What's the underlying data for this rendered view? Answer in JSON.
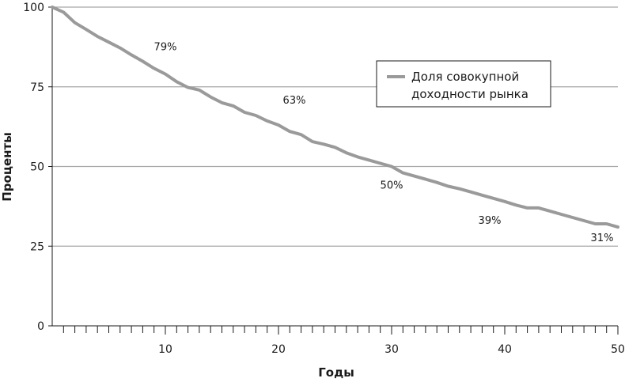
{
  "chart_data": {
    "type": "line",
    "xlabel": "Годы",
    "ylabel": "Проценты",
    "xlim": [
      0,
      50
    ],
    "ylim": [
      0,
      100
    ],
    "x_ticks": [
      10,
      20,
      30,
      40,
      50
    ],
    "y_ticks": [
      0,
      25,
      50,
      75,
      100
    ],
    "grid": "horizontal",
    "legend_position": "top-right",
    "line_color": "#9a9a9a",
    "gridline_color": "#a8a8a8",
    "series": [
      {
        "name": "Доля совокупной доходности рынка",
        "x": [
          0,
          1,
          2,
          3,
          4,
          5,
          6,
          7,
          8,
          9,
          10,
          11,
          12,
          13,
          14,
          15,
          16,
          17,
          18,
          19,
          20,
          21,
          22,
          23,
          24,
          25,
          26,
          27,
          28,
          29,
          30,
          31,
          32,
          33,
          34,
          35,
          36,
          37,
          38,
          39,
          40,
          41,
          42,
          43,
          44,
          45,
          46,
          47,
          48,
          49,
          50
        ],
        "y": [
          100,
          98.4,
          95.1,
          93,
          90.8,
          89,
          87.2,
          85,
          83,
          80.8,
          79,
          76.6,
          74.8,
          74,
          71.8,
          70,
          69,
          67,
          66,
          64.3,
          63,
          61,
          60,
          57.8,
          57,
          56,
          54.3,
          53,
          52,
          51,
          50,
          48,
          47,
          46,
          45,
          43.8,
          43,
          42,
          41,
          40,
          39,
          37.9,
          37,
          37,
          36,
          35,
          34,
          33,
          32,
          32,
          31
        ]
      }
    ],
    "annotations": [
      {
        "x": 10,
        "y": 79,
        "text": "79%"
      },
      {
        "x": 20,
        "y": 63,
        "text": "63%"
      },
      {
        "x": 30,
        "y": 50,
        "text": "50%"
      },
      {
        "x": 40,
        "y": 39,
        "text": "39%"
      },
      {
        "x": 50,
        "y": 31,
        "text": "31%"
      }
    ]
  }
}
